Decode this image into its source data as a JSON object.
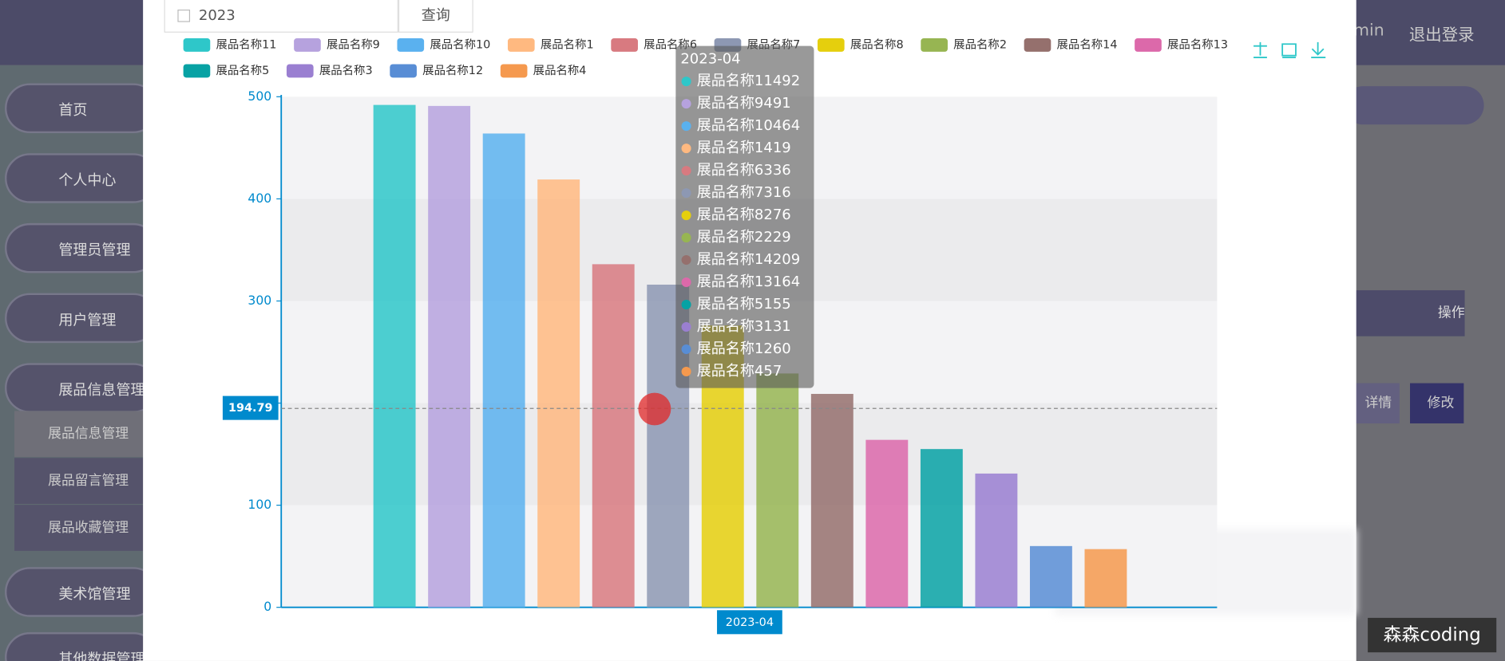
{
  "header": {
    "user": "min",
    "logout": "退出登录"
  },
  "sidebar": {
    "items": [
      "首页",
      "个人中心",
      "管理员管理",
      "用户管理",
      "展品信息管理"
    ],
    "submenu": [
      "展品信息管理",
      "展品留言管理",
      "展品收藏管理"
    ],
    "more": [
      "美术馆管理",
      "其他数据管理"
    ]
  },
  "table": {
    "action_header": "操作",
    "buttons": [
      "详情",
      "修改"
    ]
  },
  "search": {
    "value": "2023",
    "button": "查询"
  },
  "chart_data": {
    "type": "bar",
    "categories": [
      "2023-04"
    ],
    "series": [
      {
        "name": "展品名称11",
        "color": "#2ec7c9",
        "values": [
          492
        ]
      },
      {
        "name": "展品名称9",
        "color": "#b6a2de",
        "values": [
          491
        ]
      },
      {
        "name": "展品名称10",
        "color": "#5ab1ef",
        "values": [
          464
        ]
      },
      {
        "name": "展品名称1",
        "color": "#ffb980",
        "values": [
          419
        ]
      },
      {
        "name": "展品名称6",
        "color": "#d87a80",
        "values": [
          336
        ]
      },
      {
        "name": "展品名称7",
        "color": "#8d98b3",
        "values": [
          316
        ]
      },
      {
        "name": "展品名称8",
        "color": "#e5cf0d",
        "values": [
          276
        ]
      },
      {
        "name": "展品名称2",
        "color": "#97b552",
        "values": [
          229
        ]
      },
      {
        "name": "展品名称14",
        "color": "#95706d",
        "values": [
          209
        ]
      },
      {
        "name": "展品名称13",
        "color": "#dc69aa",
        "values": [
          164
        ]
      },
      {
        "name": "展品名称5",
        "color": "#07a2a4",
        "values": [
          155
        ]
      },
      {
        "name": "展品名称3",
        "color": "#9a7fd1",
        "values": [
          131
        ]
      },
      {
        "name": "展品名称12",
        "color": "#588dd5",
        "values": [
          60
        ]
      },
      {
        "name": "展品名称4",
        "color": "#f5994e",
        "values": [
          57
        ]
      }
    ],
    "ylim": [
      0,
      500
    ],
    "yticks": [
      0,
      100,
      200,
      300,
      400,
      500
    ],
    "split_area": true,
    "axis_pointer": 194.79
  },
  "watermark": "森森coding"
}
